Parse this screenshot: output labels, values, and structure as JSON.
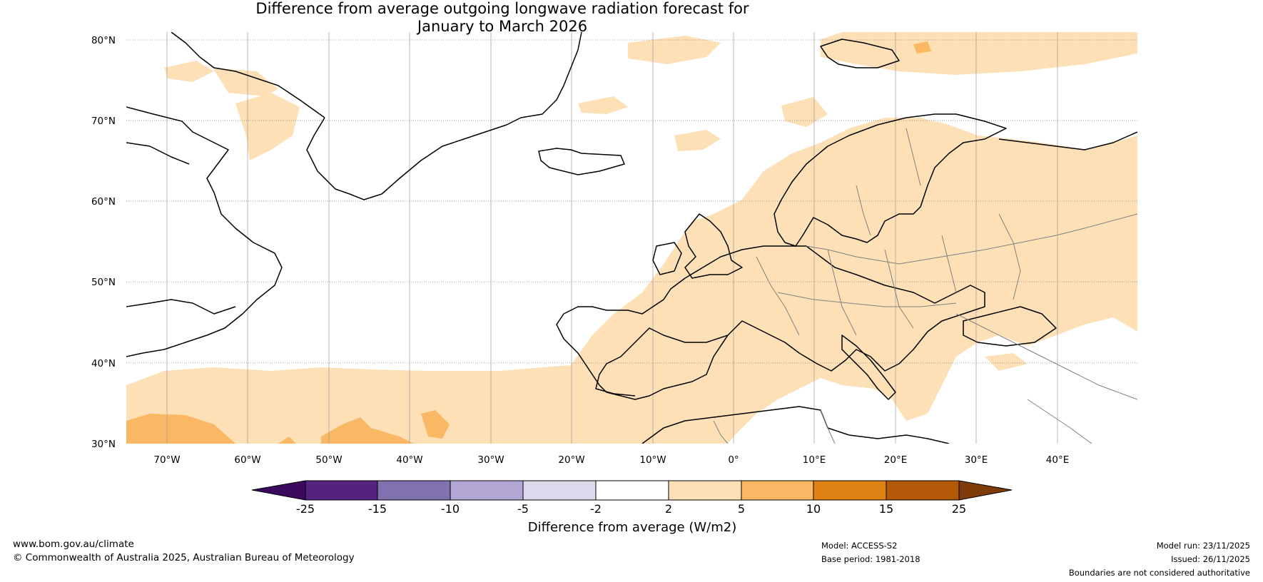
{
  "title": {
    "line1": "Difference from average outgoing longwave radiation forecast for",
    "line2": "January to March 2026"
  },
  "map": {
    "lat_labels": [
      "80°N",
      "70°N",
      "60°N",
      "50°N",
      "40°N",
      "30°N"
    ],
    "lon_labels": [
      "70°W",
      "60°W",
      "50°W",
      "40°W",
      "30°W",
      "20°W",
      "10°W",
      "0°",
      "10°E",
      "20°E",
      "30°E",
      "40°E"
    ],
    "colors": {
      "pos_2_5": "#fde0b6",
      "pos_5_10": "#fbb864",
      "ocean": "#ffffff",
      "coast": "#000000",
      "border": "#808080"
    }
  },
  "colorbar": {
    "tick_labels": [
      "-25",
      "-15",
      "-10",
      "-5",
      "-2",
      "2",
      "5",
      "10",
      "15",
      "25"
    ],
    "colors": [
      "#3b0a5e",
      "#54237f",
      "#8072ae",
      "#b1a7d2",
      "#dbdaec",
      "#ffffff",
      "#fde0b6",
      "#fbb864",
      "#e08213",
      "#b35907",
      "#7f3b08"
    ],
    "label": "Difference from average (W/m2)"
  },
  "footer": {
    "website": "www.bom.gov.au/climate",
    "copyright": "© Commonwealth of Australia 2025, Australian Bureau of Meteorology",
    "model": "Model: ACCESS-S2",
    "base_period": "Base period: 1981-2018",
    "model_run": "Model run: 23/11/2025",
    "issued": "Issued: 26/11/2025",
    "disclaimer": "Boundaries are not considered authoritative"
  }
}
